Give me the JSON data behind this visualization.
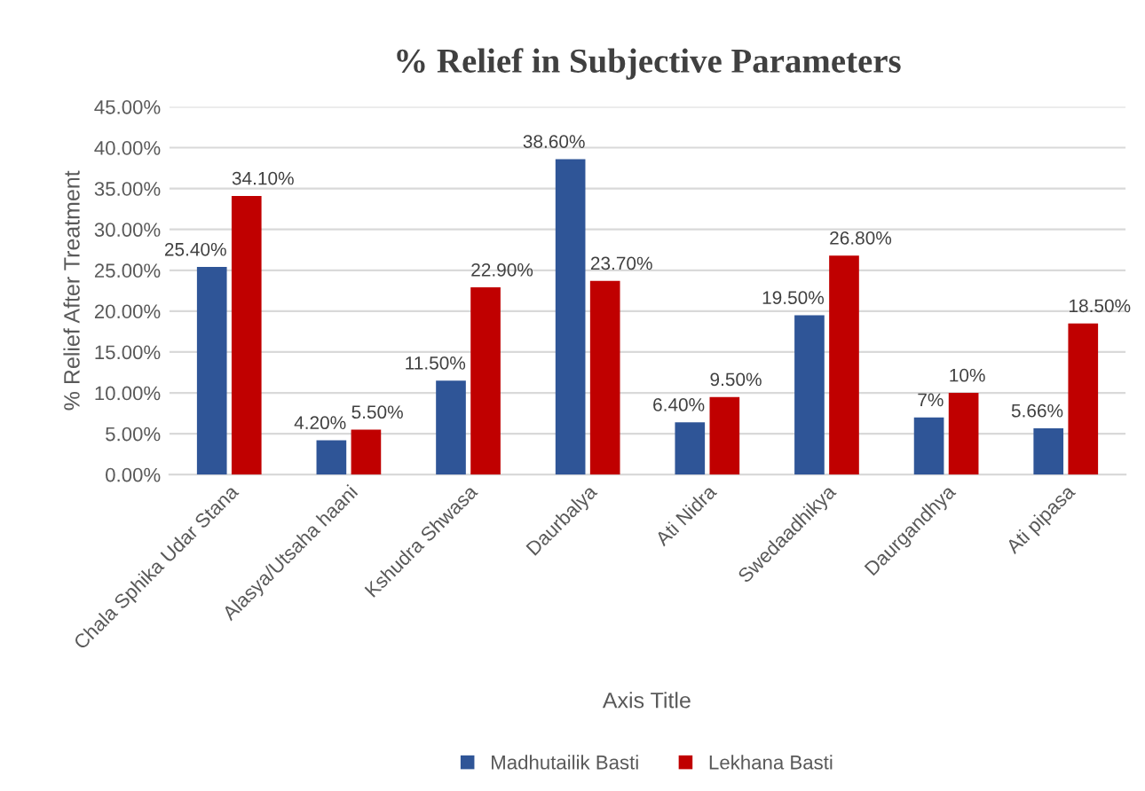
{
  "chart_data": {
    "type": "bar",
    "title": "% Relief in Subjective Parameters",
    "xlabel": "Axis Title",
    "ylabel": "% Relief After Treatment",
    "categories": [
      "Chala Sphika Udar Stana",
      "Alasya/Utsaha haani",
      "Kshudra Shwasa",
      "Daurbalya",
      "Ati Nidra",
      "Swedaadhikya",
      "Daurgandhya",
      "Ati pipasa"
    ],
    "series": [
      {
        "name": "Madhutailik Basti",
        "color": "#2f5597",
        "values": [
          25.4,
          4.2,
          11.5,
          38.6,
          6.4,
          19.5,
          7,
          5.66
        ],
        "value_labels": [
          "25.40%",
          "4.20%",
          "11.50%",
          "38.60%",
          "6.40%",
          "19.50%",
          "7%",
          "5.66%"
        ]
      },
      {
        "name": "Lekhana Basti",
        "color": "#c00000",
        "values": [
          34.1,
          5.5,
          22.9,
          23.7,
          9.5,
          26.8,
          10,
          18.5
        ],
        "value_labels": [
          "34.10%",
          "5.50%",
          "22.90%",
          "23.70%",
          "9.50%",
          "26.80%",
          "10%",
          "18.50%"
        ]
      }
    ],
    "ylim": [
      0,
      45
    ],
    "yticks": [
      {
        "value": 0,
        "label": "0.00%"
      },
      {
        "value": 5,
        "label": "5.00%"
      },
      {
        "value": 10,
        "label": "10.00%"
      },
      {
        "value": 15,
        "label": "15.00%"
      },
      {
        "value": 20,
        "label": "20.00%"
      },
      {
        "value": 25,
        "label": "25.00%"
      },
      {
        "value": 30,
        "label": "30.00%"
      },
      {
        "value": 35,
        "label": "35.00%"
      },
      {
        "value": 40,
        "label": "40.00%"
      },
      {
        "value": 45,
        "label": "45.00%"
      }
    ],
    "grid": "y",
    "legend": "bottom"
  }
}
